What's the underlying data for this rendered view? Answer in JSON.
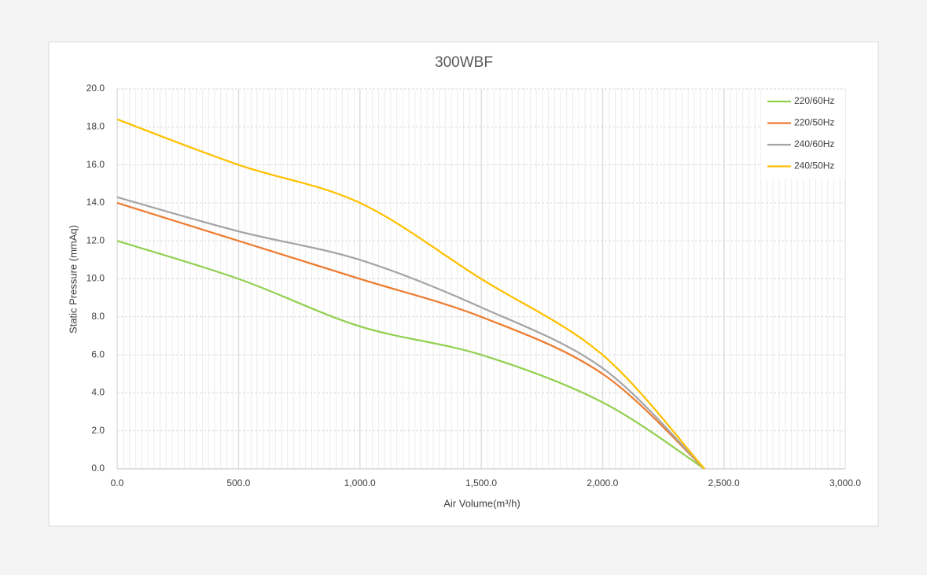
{
  "chart_data": {
    "type": "line",
    "title": "300WBF",
    "x_label": "Air Volume(m³/h)",
    "y_label": "Static Pressure (mmAq)",
    "xlim": [
      0,
      3000
    ],
    "xticks": [
      {
        "value": 0,
        "label": "0.0"
      },
      {
        "value": 500,
        "label": "500.0"
      },
      {
        "value": 1000,
        "label": "1,000.0"
      },
      {
        "value": 1500,
        "label": "1,500.0"
      },
      {
        "value": 2000,
        "label": "2,000.0"
      },
      {
        "value": 2500,
        "label": "2,500.0"
      },
      {
        "value": 3000,
        "label": "3,000.0"
      }
    ],
    "ylim": [
      0,
      20
    ],
    "yticks": [
      {
        "value": 0,
        "label": "0.0"
      },
      {
        "value": 2,
        "label": "2.0"
      },
      {
        "value": 4,
        "label": "4.0"
      },
      {
        "value": 6,
        "label": "6.0"
      },
      {
        "value": 8,
        "label": "8.0"
      },
      {
        "value": 10,
        "label": "10.0"
      },
      {
        "value": 12,
        "label": "12.0"
      },
      {
        "value": 14,
        "label": "14.0"
      },
      {
        "value": 16,
        "label": "16.0"
      },
      {
        "value": 18,
        "label": "18.0"
      },
      {
        "value": 20,
        "label": "20.0"
      }
    ],
    "grid": true,
    "legend": "top-right",
    "x": [
      0,
      500,
      1000,
      1500,
      2000,
      2420
    ],
    "series": [
      {
        "name": "220/60Hz",
        "color": "#92d050",
        "values": [
          12,
          10,
          7.5,
          6,
          3.5,
          0
        ]
      },
      {
        "name": "220/50Hz",
        "color": "#ed7d31",
        "values": [
          14,
          12,
          10,
          8,
          5,
          0
        ]
      },
      {
        "name": "240/60Hz",
        "color": "#a5a5a5",
        "values": [
          14.3,
          12.5,
          11,
          8.5,
          5.3,
          0
        ]
      },
      {
        "name": "240/50Hz",
        "color": "#ffc000",
        "values": [
          18.4,
          16,
          14,
          10,
          6,
          0
        ]
      }
    ]
  }
}
